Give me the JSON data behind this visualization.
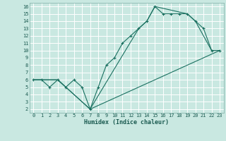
{
  "xlabel": "Humidex (Indice chaleur)",
  "bg_color": "#c9e8e1",
  "grid_color": "#b0d8ce",
  "line_color": "#1a7060",
  "xlim": [
    -0.5,
    23.5
  ],
  "ylim": [
    1.5,
    16.5
  ],
  "xticks": [
    0,
    1,
    2,
    3,
    4,
    5,
    6,
    7,
    8,
    9,
    10,
    11,
    12,
    13,
    14,
    15,
    16,
    17,
    18,
    19,
    20,
    21,
    22,
    23
  ],
  "yticks": [
    2,
    3,
    4,
    5,
    6,
    7,
    8,
    9,
    10,
    11,
    12,
    13,
    14,
    15,
    16
  ],
  "line1_x": [
    0,
    1,
    2,
    3,
    4,
    5,
    6,
    7,
    8,
    9,
    10,
    11,
    12,
    13,
    14,
    15,
    16,
    17,
    18,
    19,
    20,
    21,
    22,
    23
  ],
  "line1_y": [
    6,
    6,
    5,
    6,
    5,
    6,
    5,
    2,
    5,
    8,
    9,
    11,
    12,
    13,
    14,
    16,
    15,
    15,
    15,
    15,
    14,
    13,
    10,
    10
  ],
  "line2_x": [
    0,
    3,
    7,
    13,
    14,
    15,
    19,
    20,
    22,
    23
  ],
  "line2_y": [
    6,
    6,
    2,
    13,
    14,
    16,
    15,
    14,
    10,
    10
  ],
  "line3_x": [
    0,
    3,
    7,
    23
  ],
  "line3_y": [
    6,
    6,
    2,
    10
  ]
}
